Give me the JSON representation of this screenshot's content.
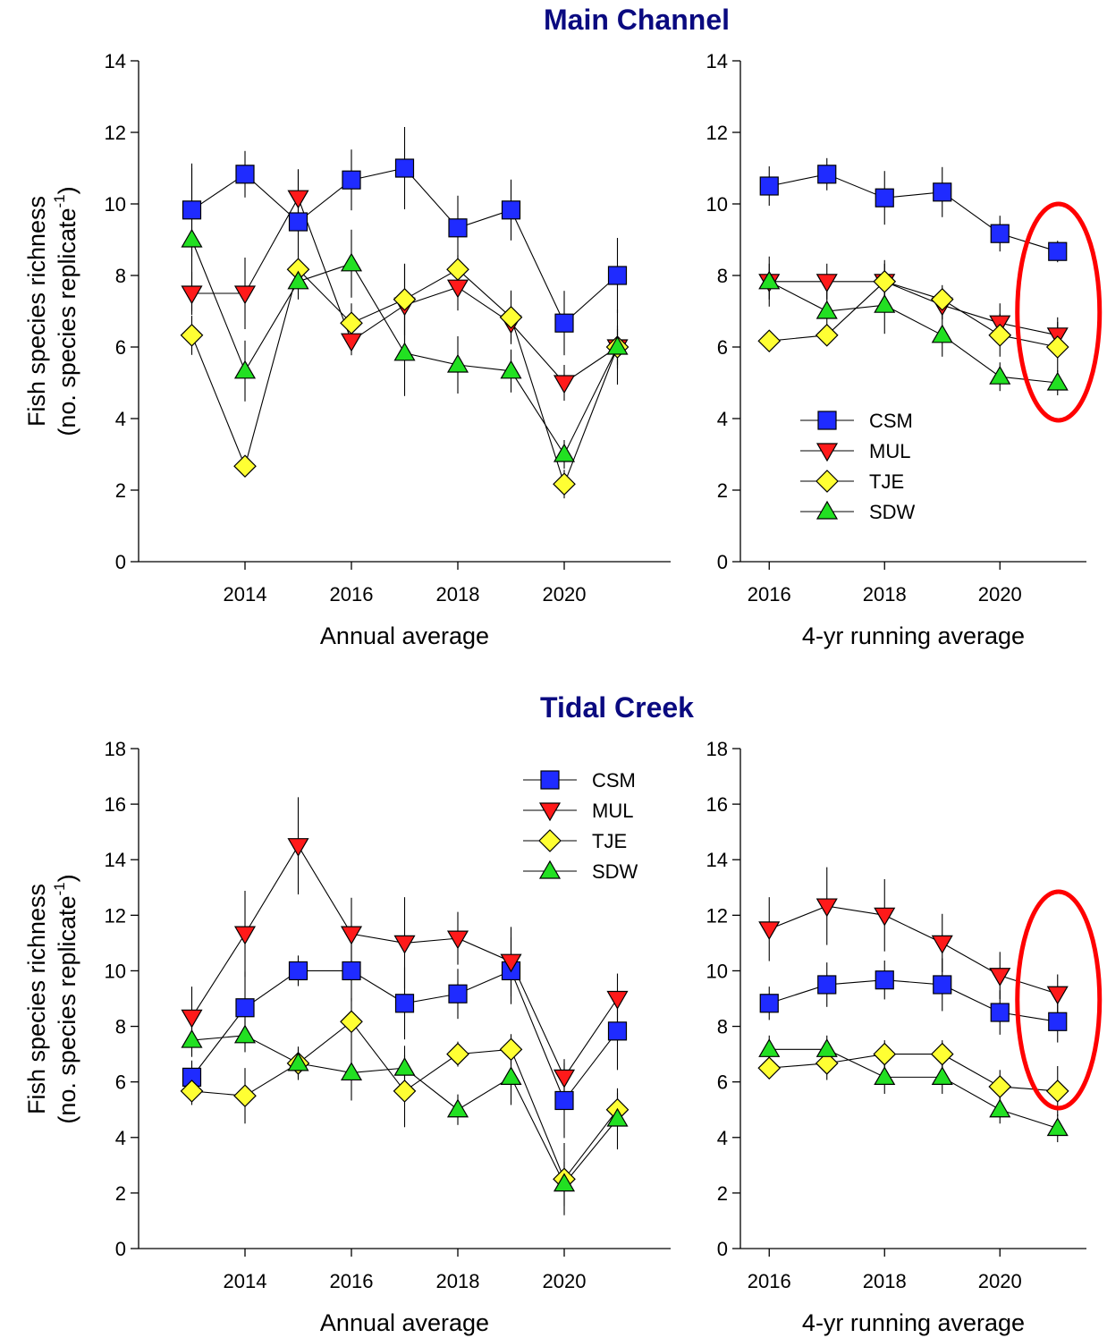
{
  "sections": [
    {
      "title": "Main Channel",
      "y_label_line1": "Fish species richness",
      "y_label_line2": "(no. species replicate",
      "y_label_sup": "-1",
      "y_label_close": ")"
    },
    {
      "title": "Tidal Creek",
      "y_label_line1": "Fish species richness",
      "y_label_line2": "(no. species replicate",
      "y_label_sup": "-1",
      "y_label_close": ")"
    }
  ],
  "series_styles": [
    {
      "name": "CSM",
      "marker": "square",
      "color": "#1f2bff"
    },
    {
      "name": "MUL",
      "marker": "triangle-down",
      "color": "#ff1a1a"
    },
    {
      "name": "TJE",
      "marker": "diamond",
      "color": "#ffff33"
    },
    {
      "name": "SDW",
      "marker": "triangle-up",
      "color": "#22e022"
    }
  ],
  "highlight_color": "#ff0000",
  "chart_data": [
    {
      "type": "line",
      "section": "Main Channel",
      "panel": "annual",
      "xlabel": "Annual average",
      "ylabel": "Fish species richness (no. species replicate-1)",
      "x": [
        2013,
        2014,
        2015,
        2016,
        2017,
        2018,
        2019,
        2020,
        2021
      ],
      "xlim": [
        2012,
        2022
      ],
      "xticks": [
        2014,
        2016,
        2018,
        2020
      ],
      "ylim": [
        0,
        14
      ],
      "yticks": [
        0,
        2,
        4,
        6,
        8,
        10,
        12,
        14
      ],
      "grid": false,
      "legend": "none",
      "series": [
        {
          "name": "CSM",
          "values": [
            9.83,
            10.83,
            9.5,
            10.67,
            11.0,
            9.33,
            9.83,
            6.67,
            8.0
          ],
          "errors": [
            1.3,
            0.65,
            1.45,
            0.85,
            1.15,
            0.9,
            0.85,
            0.9,
            1.05
          ]
        },
        {
          "name": "MUL",
          "values": [
            7.5,
            7.5,
            10.17,
            6.17,
            7.17,
            7.67,
            6.67,
            5.0,
            6.0
          ],
          "errors": [
            0.6,
            1.0,
            0.8,
            0.4,
            1.15,
            0.65,
            0.5,
            0.5,
            0.6
          ]
        },
        {
          "name": "TJE",
          "values": [
            6.33,
            2.67,
            8.17,
            6.67,
            7.33,
            8.17,
            6.83,
            2.17,
            6.0
          ],
          "errors": [
            0.55,
            0.3,
            0.3,
            0.55,
            1.0,
            0.4,
            0.75,
            0.4,
            0.5
          ]
        },
        {
          "name": "SDW",
          "values": [
            9.0,
            5.33,
            7.83,
            8.33,
            5.83,
            5.5,
            5.33,
            3.0,
            6.0
          ],
          "errors": [
            2.0,
            0.85,
            0.5,
            0.95,
            1.2,
            0.8,
            0.6,
            0.4,
            1.05
          ]
        }
      ]
    },
    {
      "type": "line",
      "section": "Main Channel",
      "panel": "running",
      "xlabel": "4-yr running average",
      "x": [
        2016,
        2017,
        2018,
        2019,
        2020,
        2021
      ],
      "xlim": [
        2015.5,
        2021.5
      ],
      "xticks": [
        2016,
        2018,
        2020
      ],
      "ylim": [
        0,
        14
      ],
      "yticks": [
        0,
        2,
        4,
        6,
        8,
        10,
        12,
        14
      ],
      "grid": false,
      "legend": "lower-left",
      "highlight": {
        "x": 2021,
        "shape": "ellipse",
        "color": "red"
      },
      "series": [
        {
          "name": "CSM",
          "values": [
            10.5,
            10.83,
            10.17,
            10.33,
            9.17,
            8.67
          ],
          "errors": [
            0.55,
            0.45,
            0.75,
            0.7,
            0.5,
            0.3
          ]
        },
        {
          "name": "MUL",
          "values": [
            7.83,
            7.83,
            7.83,
            7.17,
            6.67,
            6.33
          ],
          "errors": [
            0.5,
            0.5,
            0.5,
            0.4,
            0.55,
            0.5
          ]
        },
        {
          "name": "TJE",
          "values": [
            6.17,
            6.33,
            7.83,
            7.33,
            6.33,
            6.0
          ],
          "errors": [
            0,
            0,
            0.6,
            0.4,
            0.6,
            0.7
          ]
        },
        {
          "name": "SDW",
          "values": [
            7.83,
            7.0,
            7.17,
            6.33,
            5.17,
            5.0
          ],
          "errors": [
            0.7,
            0.8,
            0.8,
            0.6,
            0.4,
            0.35
          ]
        }
      ]
    },
    {
      "type": "line",
      "section": "Tidal Creek",
      "panel": "annual",
      "xlabel": "Annual average",
      "ylabel": "Fish species richness (no. species replicate-1)",
      "x": [
        2013,
        2014,
        2015,
        2016,
        2017,
        2018,
        2019,
        2020,
        2021
      ],
      "xlim": [
        2012,
        2022
      ],
      "xticks": [
        2014,
        2016,
        2018,
        2020
      ],
      "ylim": [
        0,
        18
      ],
      "yticks": [
        0,
        2,
        4,
        6,
        8,
        10,
        12,
        14,
        16,
        18
      ],
      "grid": false,
      "legend": "upper-right",
      "series": [
        {
          "name": "CSM",
          "values": [
            6.17,
            8.67,
            10.0,
            10.0,
            8.83,
            9.17,
            10.0,
            5.33,
            7.83
          ],
          "errors": [
            0.6,
            1.3,
            0.55,
            1.1,
            1.3,
            0.9,
            1.2,
            1.35,
            1.4
          ]
        },
        {
          "name": "MUL",
          "values": [
            8.33,
            11.33,
            14.5,
            11.33,
            11.0,
            11.17,
            10.33,
            6.17,
            9.0
          ],
          "errors": [
            1.1,
            1.55,
            1.75,
            1.3,
            1.65,
            0.95,
            1.25,
            0.65,
            0.9
          ]
        },
        {
          "name": "TJE",
          "values": [
            5.67,
            5.5,
            6.67,
            8.17,
            5.67,
            7.0,
            7.17,
            2.5,
            5.0
          ],
          "errors": [
            0.5,
            1.0,
            0.5,
            0.85,
            1.3,
            0.45,
            0.55,
            1.3,
            0.6
          ]
        },
        {
          "name": "SDW",
          "values": [
            7.5,
            7.67,
            6.67,
            6.33,
            6.5,
            5.0,
            6.17,
            2.33,
            4.67
          ],
          "errors": [
            0.6,
            0.6,
            0.6,
            1.0,
            0.8,
            0.55,
            1.0,
            0.8,
            1.1
          ]
        }
      ]
    },
    {
      "type": "line",
      "section": "Tidal Creek",
      "panel": "running",
      "xlabel": "4-yr running average",
      "x": [
        2016,
        2017,
        2018,
        2019,
        2020,
        2021
      ],
      "xlim": [
        2015.5,
        2021.5
      ],
      "xticks": [
        2016,
        2018,
        2020
      ],
      "ylim": [
        0,
        18
      ],
      "yticks": [
        0,
        2,
        4,
        6,
        8,
        10,
        12,
        14,
        16,
        18
      ],
      "grid": false,
      "legend": "none",
      "highlight": {
        "x": 2021,
        "shape": "ellipse",
        "color": "red"
      },
      "series": [
        {
          "name": "CSM",
          "values": [
            8.83,
            9.5,
            9.67,
            9.5,
            8.5,
            8.17
          ],
          "errors": [
            0.6,
            0.8,
            0.7,
            0.95,
            0.8,
            0.75
          ]
        },
        {
          "name": "MUL",
          "values": [
            11.5,
            12.33,
            12.0,
            11.0,
            9.83,
            9.17
          ],
          "errors": [
            1.15,
            1.4,
            1.3,
            1.05,
            0.85,
            0.7
          ]
        },
        {
          "name": "TJE",
          "values": [
            6.5,
            6.67,
            7.0,
            7.0,
            5.83,
            5.67
          ],
          "errors": [
            0.4,
            0.6,
            0.5,
            0.5,
            0.6,
            0.9
          ]
        },
        {
          "name": "SDW",
          "values": [
            7.17,
            7.17,
            6.17,
            6.17,
            5.0,
            4.33
          ],
          "errors": [
            0.5,
            0.5,
            0.6,
            0.6,
            0.5,
            0.5
          ]
        }
      ]
    }
  ]
}
